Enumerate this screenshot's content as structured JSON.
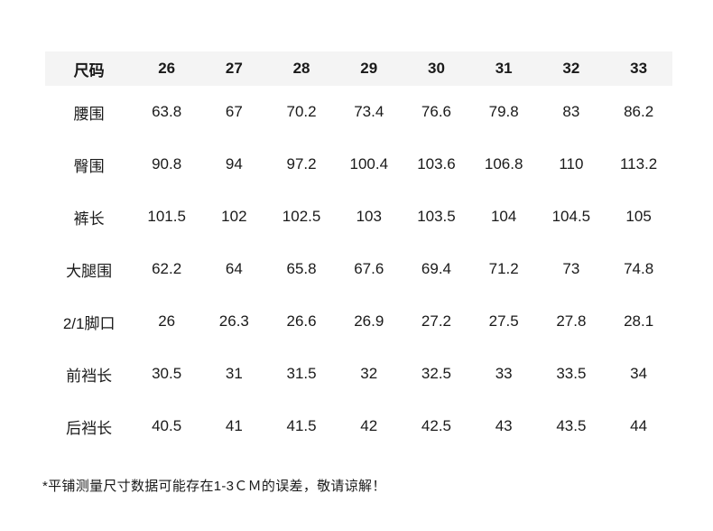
{
  "colors": {
    "background": "#ffffff",
    "header_row_bg": "#f4f4f4",
    "text": "#1a1a1a"
  },
  "page": {
    "footnote": "*平铺测量尺寸数据可能存在1-3ＣＭ的误差，敬请谅解！"
  },
  "size_table": {
    "corner_header": "尺码",
    "columns": [
      "尺码",
      "26",
      "27",
      "28",
      "29",
      "30",
      "31",
      "32",
      "33"
    ],
    "rows": [
      {
        "label": "腰围",
        "values": [
          "63.8",
          "67",
          "70.2",
          "73.4",
          "76.6",
          "79.8",
          "83",
          "86.2"
        ]
      },
      {
        "label": "臀围",
        "values": [
          "90.8",
          "94",
          "97.2",
          "100.4",
          "103.6",
          "106.8",
          "110",
          "113.2"
        ]
      },
      {
        "label": "裤长",
        "values": [
          "101.5",
          "102",
          "102.5",
          "103",
          "103.5",
          "104",
          "104.5",
          "105"
        ]
      },
      {
        "label": "大腿围",
        "values": [
          "62.2",
          "64",
          "65.8",
          "67.6",
          "69.4",
          "71.2",
          "73",
          "74.8"
        ]
      },
      {
        "label": "2/1脚口",
        "values": [
          "26",
          "26.3",
          "26.6",
          "26.9",
          "27.2",
          "27.5",
          "27.8",
          "28.1"
        ]
      },
      {
        "label": "前裆长",
        "values": [
          "30.5",
          "31",
          "31.5",
          "32",
          "32.5",
          "33",
          "33.5",
          "34"
        ]
      },
      {
        "label": "后裆长",
        "values": [
          "40.5",
          "41",
          "41.5",
          "42",
          "42.5",
          "43",
          "43.5",
          "44"
        ]
      }
    ]
  }
}
